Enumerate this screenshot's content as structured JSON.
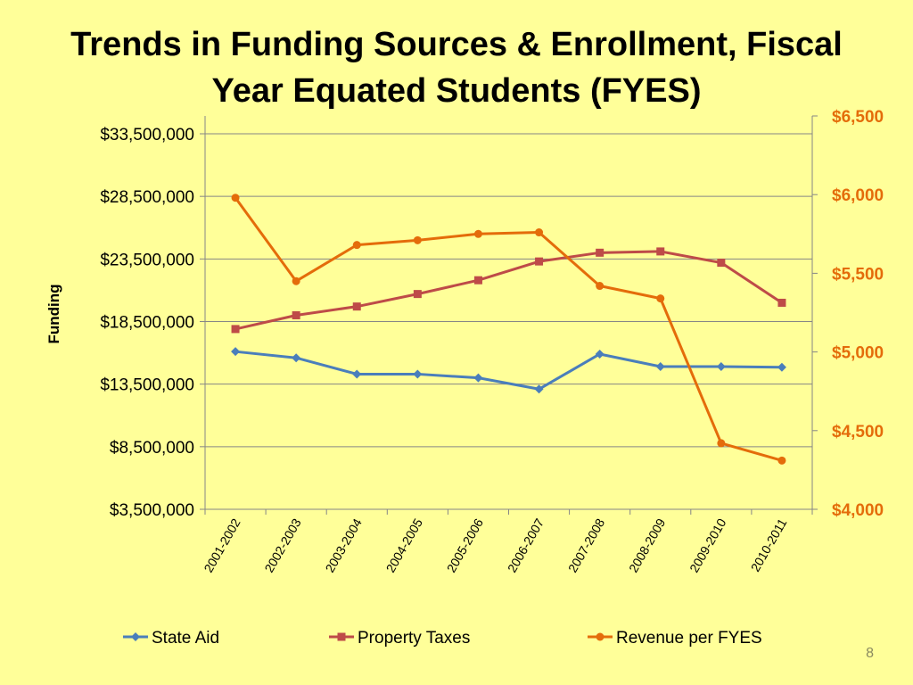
{
  "slide": {
    "title_line1": "Trends in Funding Sources & Enrollment, Fiscal",
    "title_line2": "Year Equated Students (FYES)",
    "page_number": "8"
  },
  "colors": {
    "background": "#ffff99",
    "state_aid": "#4a7ebb",
    "property_taxes": "#be4b48",
    "revenue_per_fyes": "#e46c0a",
    "axis_right_labels": "#e46c0a"
  },
  "chart_data": {
    "type": "line",
    "title": "",
    "xlabel": "",
    "ylabel": "Funding",
    "y2label": "",
    "categories": [
      "2001-2002",
      "2002-2003",
      "2003-2004",
      "2004-2005",
      "2005-2006",
      "2006-2007",
      "2007-2008",
      "2008-2009",
      "2009-2010",
      "2010-2011"
    ],
    "ylim": [
      3500000,
      33500000
    ],
    "yticks": [
      3500000,
      8500000,
      13500000,
      18500000,
      23500000,
      28500000,
      33500000
    ],
    "ytick_labels": [
      "$3,500,000",
      "$8,500,000",
      "$13,500,000",
      "$18,500,000",
      "$23,500,000",
      "$28,500,000",
      "$33,500,000"
    ],
    "y2lim": [
      4000,
      6500
    ],
    "y2ticks": [
      4000,
      4500,
      5000,
      5500,
      6000,
      6500
    ],
    "y2tick_labels": [
      "$4,000",
      "$4,500",
      "$5,000",
      "$5,500",
      "$6,000",
      "$6,500"
    ],
    "grid": true,
    "legend_position": "bottom",
    "series": [
      {
        "name": "State Aid",
        "axis": "left",
        "marker": "diamond",
        "color": "#4a7ebb",
        "values": [
          16100000,
          15600000,
          14300000,
          14300000,
          14000000,
          13100000,
          15900000,
          14900000,
          14900000,
          14850000
        ]
      },
      {
        "name": "Property Taxes",
        "axis": "left",
        "marker": "square",
        "color": "#be4b48",
        "values": [
          17900000,
          19000000,
          19700000,
          20700000,
          21800000,
          23300000,
          24000000,
          24100000,
          23200000,
          20000000
        ]
      },
      {
        "name": "Revenue per FYES",
        "axis": "right",
        "marker": "circle",
        "color": "#e46c0a",
        "values": [
          5980,
          5450,
          5680,
          5710,
          5750,
          5760,
          5420,
          5340,
          4420,
          4310
        ]
      }
    ]
  }
}
